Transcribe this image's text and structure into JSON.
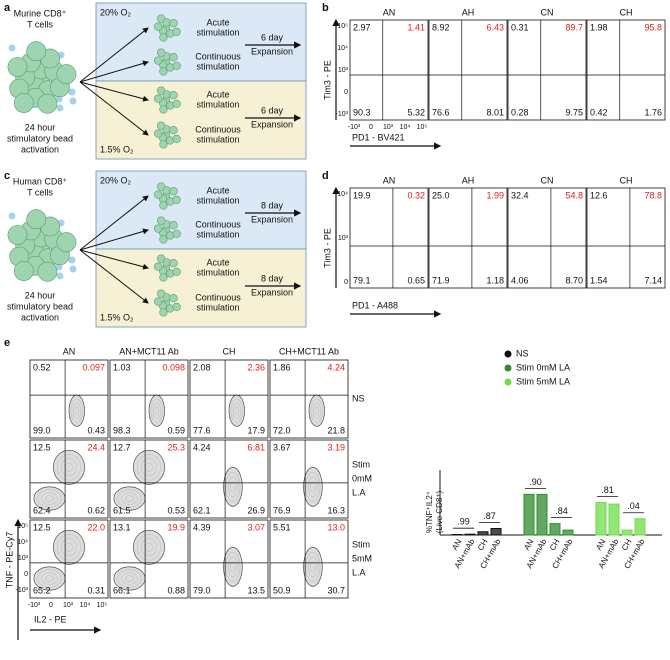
{
  "schematics": [
    {
      "label": "a",
      "title": [
        "Murine CD8⁺",
        "T cells"
      ],
      "footer": [
        "24 hour",
        "stimulatory bead",
        "activation"
      ],
      "normoxia": "20% O₂",
      "hypoxia": "1.5% O₂",
      "acute": [
        "Acute",
        "stimulation"
      ],
      "continuous": [
        "Continuous",
        "stimulation"
      ],
      "expansion": [
        "6 day",
        "Expansion"
      ]
    },
    {
      "label": "c",
      "title": [
        "Human CD8⁺",
        "T cells"
      ],
      "footer": [
        "24 hour",
        "stimulatory bead",
        "activation"
      ],
      "normoxia": "20% O₂",
      "hypoxia": "1.5% O₂",
      "acute": [
        "Acute",
        "stimulation"
      ],
      "continuous": [
        "Continuous",
        "stimulation"
      ],
      "expansion": [
        "8 day",
        "Expansion"
      ]
    }
  ],
  "flow_panels": [
    {
      "label": "b",
      "y_label": "Tim3 - PE",
      "x_label": "PD1 - BV421",
      "y_ticks": [
        "10⁵",
        "10⁴",
        "10³",
        "0",
        "-10³"
      ],
      "x_ticks": [
        "-10³",
        "0",
        "10³",
        "10⁴",
        "10⁵"
      ],
      "plots": [
        {
          "title": "AN",
          "quadrants": [
            "2.97",
            "1.41",
            "90.3",
            "5.32"
          ]
        },
        {
          "title": "AH",
          "quadrants": [
            "8.92",
            "6.43",
            "76.6",
            "8.01"
          ]
        },
        {
          "title": "CN",
          "quadrants": [
            "0.31",
            "89.7",
            "0.28",
            "9.75"
          ]
        },
        {
          "title": "CH",
          "quadrants": [
            "1.98",
            "95.8",
            "0.42",
            "1.76"
          ]
        }
      ]
    },
    {
      "label": "d",
      "y_label": "Tim3 - PE",
      "x_label": "PD1 - A488",
      "y_ticks": [
        "10⁴",
        "10³",
        "0"
      ],
      "x_ticks": [],
      "plots": [
        {
          "title": "AN",
          "quadrants": [
            "19.9",
            "0.32",
            "79.1",
            "0.65"
          ]
        },
        {
          "title": "AH",
          "quadrants": [
            "25.0",
            "1.99",
            "71.9",
            "1.18"
          ]
        },
        {
          "title": "CN",
          "quadrants": [
            "32.4",
            "54.8",
            "4.06",
            "8.70"
          ]
        },
        {
          "title": "CH",
          "quadrants": [
            "12.6",
            "78.8",
            "1.54",
            "7.14"
          ]
        }
      ]
    }
  ],
  "panel_e": {
    "label": "e",
    "columns": [
      "AN",
      "AN+MCT11 Ab",
      "CH",
      "CH+MCT11 Ab"
    ],
    "rows": [
      [
        "NS"
      ],
      [
        "Stim",
        "0mM",
        "L.A"
      ],
      [
        "Stim",
        "5mM",
        "L.A"
      ]
    ],
    "y_label": "TNF - PE-Cy7",
    "x_label": "IL2 - PE",
    "y_ticks": [
      "10⁵",
      "10⁴",
      "10³",
      "0",
      "-10³"
    ],
    "x_ticks": [
      "-10³",
      "0",
      "10³",
      "10⁴",
      "10⁵"
    ],
    "quadrants": [
      [
        [
          "0.52",
          "0.097",
          "99.0",
          "0.43"
        ],
        [
          "1.03",
          "0.098",
          "98.3",
          "0.59"
        ],
        [
          "2.08",
          "2.36",
          "77.6",
          "17.9"
        ],
        [
          "1.86",
          "4.24",
          "72.0",
          "21.8"
        ]
      ],
      [
        [
          "12.5",
          "24.4",
          "62.4",
          "0.62"
        ],
        [
          "12.7",
          "25.3",
          "61.5",
          "0.53"
        ],
        [
          "4.24",
          "6.81",
          "62.1",
          "26.9"
        ],
        [
          "3.67",
          "3.19",
          "76.9",
          "16.3"
        ]
      ],
      [
        [
          "12.5",
          "22.0",
          "65.2",
          "0.31"
        ],
        [
          "13.1",
          "19.9",
          "66.1",
          "0.88"
        ],
        [
          "4.39",
          "3.07",
          "79.0",
          "13.5"
        ],
        [
          "5.51",
          "13.0",
          "50.9",
          "30.7"
        ]
      ]
    ]
  },
  "chart_data": {
    "type": "bar",
    "y_label": [
      "%TNF⁺IL2⁺",
      "(Live CD8⁺)"
    ],
    "categories": [
      "AN",
      "AN+mAb",
      "CH",
      "CH+mAb"
    ],
    "ylim": [
      0,
      40
    ],
    "series": [
      {
        "name": "NS",
        "color": "#111111",
        "values": [
          0.3,
          0.5,
          2,
          4
        ],
        "p_values": [
          ".99",
          ".87"
        ]
      },
      {
        "name": "Stim 0mM LA",
        "color": "#2e8b2e",
        "values": [
          25,
          25,
          7,
          3
        ],
        "p_values": [
          ".90",
          ".84"
        ]
      },
      {
        "name": "Stim 5mM LA",
        "color": "#6fdc4a",
        "values": [
          20,
          19,
          3,
          10
        ],
        "p_values": [
          ".81",
          ".04"
        ]
      }
    ]
  }
}
